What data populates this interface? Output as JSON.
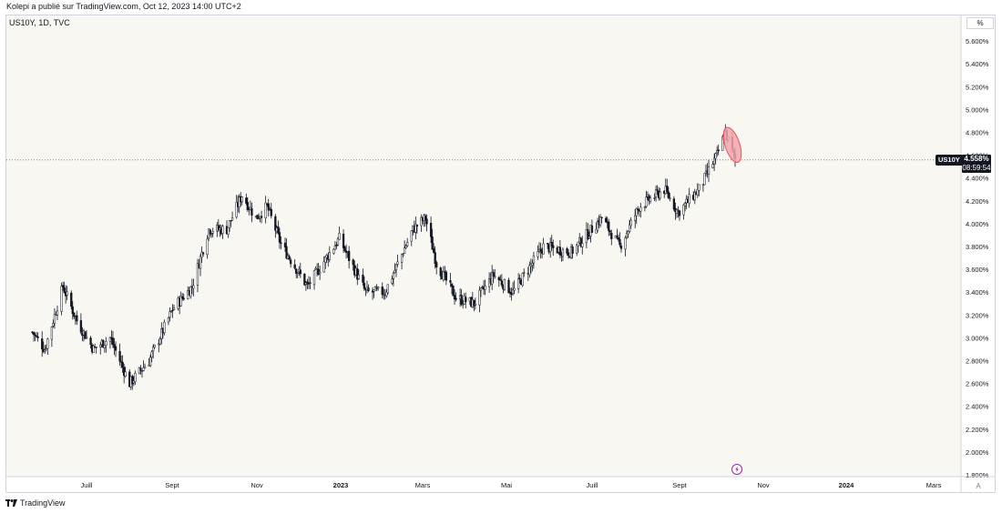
{
  "header": {
    "published_by": "Kolepi a publié sur TradingView.com, Oct 12, 2023 14:00 UTC+2"
  },
  "symbol_info": "US10Y, 1D, TVC",
  "axis": {
    "unit": "%",
    "auto_button": "A"
  },
  "price_tag": {
    "symbol": "US10Y",
    "value": "4.558%",
    "countdown": "08:59:54"
  },
  "footer": {
    "brand": "TradingView"
  },
  "colors": {
    "candle": "#131722",
    "background": "#f8f7f2",
    "highlight_fill": "#f4a6ad",
    "highlight_stroke": "#e8505b",
    "dotted_line": "#131722"
  },
  "chart_data": {
    "type": "candlestick",
    "title": "",
    "ylabel": "",
    "y_unit": "%",
    "ylim": [
      1.8,
      5.7
    ],
    "y_ticks": [
      "5.600%",
      "5.400%",
      "5.200%",
      "5.000%",
      "4.800%",
      "4.600%",
      "4.400%",
      "4.200%",
      "4.000%",
      "3.800%",
      "3.600%",
      "3.400%",
      "3.200%",
      "3.000%",
      "2.800%",
      "2.600%",
      "2.400%",
      "2.200%",
      "2.000%",
      "1.800%"
    ],
    "x_ticks": [
      {
        "label": "Juill",
        "major": false
      },
      {
        "label": "Sept",
        "major": false
      },
      {
        "label": "Nov",
        "major": false
      },
      {
        "label": "2023",
        "major": true
      },
      {
        "label": "Mars",
        "major": false
      },
      {
        "label": "Mai",
        "major": false
      },
      {
        "label": "Juill",
        "major": false
      },
      {
        "label": "Sept",
        "major": false
      },
      {
        "label": "Nov",
        "major": false
      },
      {
        "label": "2024",
        "major": true
      },
      {
        "label": "Mars",
        "major": false
      }
    ],
    "grid": false,
    "current_value": 4.558,
    "series": [
      {
        "date": "2022-05-23",
        "close": 3.05
      },
      {
        "date": "2022-06-01",
        "close": 2.9
      },
      {
        "date": "2022-06-14",
        "close": 3.45
      },
      {
        "date": "2022-06-24",
        "close": 3.15
      },
      {
        "date": "2022-07-06",
        "close": 2.9
      },
      {
        "date": "2022-07-18",
        "close": 3.0
      },
      {
        "date": "2022-08-01",
        "close": 2.6
      },
      {
        "date": "2022-08-15",
        "close": 2.8
      },
      {
        "date": "2022-09-01",
        "close": 3.25
      },
      {
        "date": "2022-09-15",
        "close": 3.45
      },
      {
        "date": "2022-09-27",
        "close": 3.95
      },
      {
        "date": "2022-10-10",
        "close": 3.95
      },
      {
        "date": "2022-10-21",
        "close": 4.25
      },
      {
        "date": "2022-10-31",
        "close": 4.05
      },
      {
        "date": "2022-11-08",
        "close": 4.15
      },
      {
        "date": "2022-11-18",
        "close": 3.82
      },
      {
        "date": "2022-12-07",
        "close": 3.45
      },
      {
        "date": "2022-12-30",
        "close": 3.87
      },
      {
        "date": "2023-01-18",
        "close": 3.4
      },
      {
        "date": "2023-02-01",
        "close": 3.4
      },
      {
        "date": "2023-02-21",
        "close": 3.95
      },
      {
        "date": "2023-03-02",
        "close": 4.05
      },
      {
        "date": "2023-03-10",
        "close": 3.65
      },
      {
        "date": "2023-03-24",
        "close": 3.35
      },
      {
        "date": "2023-04-06",
        "close": 3.3
      },
      {
        "date": "2023-04-20",
        "close": 3.55
      },
      {
        "date": "2023-05-04",
        "close": 3.4
      },
      {
        "date": "2023-05-26",
        "close": 3.8
      },
      {
        "date": "2023-06-15",
        "close": 3.75
      },
      {
        "date": "2023-07-07",
        "close": 4.05
      },
      {
        "date": "2023-07-20",
        "close": 3.8
      },
      {
        "date": "2023-08-03",
        "close": 4.15
      },
      {
        "date": "2023-08-21",
        "close": 4.3
      },
      {
        "date": "2023-08-31",
        "close": 4.1
      },
      {
        "date": "2023-09-15",
        "close": 4.3
      },
      {
        "date": "2023-09-28",
        "close": 4.6
      },
      {
        "date": "2023-10-04",
        "close": 4.8
      },
      {
        "date": "2023-10-11",
        "close": 4.56
      }
    ]
  }
}
